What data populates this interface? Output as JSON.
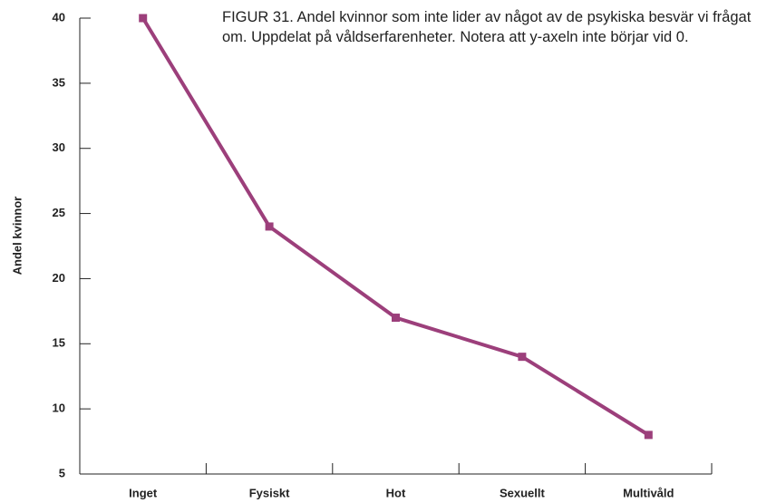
{
  "chart_data": {
    "type": "line",
    "title": "FIGUR 31. Andel kvinnor som inte lider av något av de psykiska besvär vi frågat om. Uppdelat på våldserfarenheter. Notera att y-axeln inte börjar vid 0.",
    "ylabel": "Andel kvinnor",
    "categories": [
      "Inget",
      "Fysiskt",
      "Hot",
      "Sexuellt",
      "Multivåld"
    ],
    "series": [
      {
        "name": null,
        "color": "#9c3f7b",
        "values": [
          40,
          24,
          17,
          14,
          8
        ]
      }
    ],
    "ylim": [
      5,
      40
    ],
    "yticks": [
      5,
      10,
      15,
      20,
      25,
      30,
      35,
      40
    ],
    "grid": false
  }
}
